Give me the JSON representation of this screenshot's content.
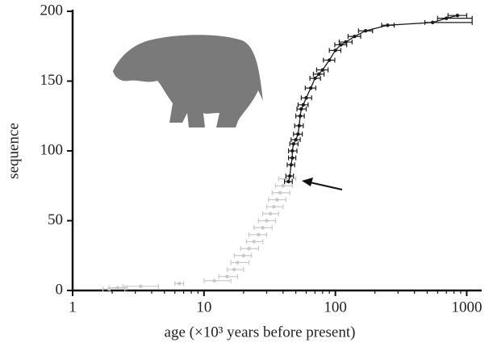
{
  "chart_data": {
    "type": "scatter",
    "x_label": "age (×10³ years before present)",
    "y_label": "sequence",
    "x_log": true,
    "xlim": [
      1,
      1300
    ],
    "ylim": [
      0,
      200
    ],
    "xticks": [
      1,
      10,
      100,
      1000
    ],
    "yticks": [
      0,
      50,
      100,
      150,
      200
    ],
    "series": [
      {
        "color": "#c8c8c8",
        "connected": false,
        "x": [
          1.9,
          2.2,
          3.3,
          6.5,
          12,
          15,
          17,
          18,
          20,
          22,
          24,
          26,
          28,
          30,
          32,
          34,
          36,
          38,
          40,
          42
        ],
        "values": [
          1,
          2,
          3,
          5,
          7,
          10,
          15,
          20,
          25,
          30,
          35,
          40,
          45,
          50,
          55,
          60,
          65,
          70,
          75,
          80
        ],
        "x_lower": [
          1.7,
          1.9,
          2.4,
          6,
          10,
          13,
          15,
          16,
          17,
          19,
          21,
          22,
          24,
          26,
          28,
          30,
          31,
          33,
          35,
          37
        ],
        "x_upper": [
          2.5,
          2.6,
          4.5,
          7,
          16,
          18,
          20,
          22,
          23,
          26,
          28,
          30,
          33,
          35,
          37,
          40,
          42,
          45,
          47,
          50
        ]
      },
      {
        "color": "#1a1a1a",
        "connected": true,
        "x": [
          44,
          45,
          46,
          47,
          47,
          48,
          50,
          52,
          53,
          54,
          55,
          57,
          60,
          65,
          70,
          75,
          80,
          90,
          100,
          110,
          120,
          140,
          170,
          250,
          550,
          700,
          850
        ],
        "values": [
          78,
          82,
          90,
          95,
          100,
          105,
          108,
          112,
          118,
          125,
          130,
          133,
          138,
          145,
          152,
          155,
          158,
          165,
          172,
          176,
          178,
          182,
          186,
          190,
          192,
          195,
          197
        ],
        "x_lower": [
          41,
          42,
          43,
          44,
          44,
          45,
          46,
          48,
          49,
          50,
          51,
          52,
          55,
          59,
          64,
          68,
          72,
          81,
          90,
          99,
          107,
          125,
          150,
          225,
          480,
          600,
          720
        ],
        "x_upper": [
          47,
          48,
          49,
          50,
          51,
          52,
          54,
          56,
          57,
          58,
          60,
          62,
          66,
          71,
          77,
          82,
          88,
          99,
          110,
          122,
          134,
          156,
          192,
          280,
          1100,
          1100,
          1000
        ]
      }
    ]
  }
}
